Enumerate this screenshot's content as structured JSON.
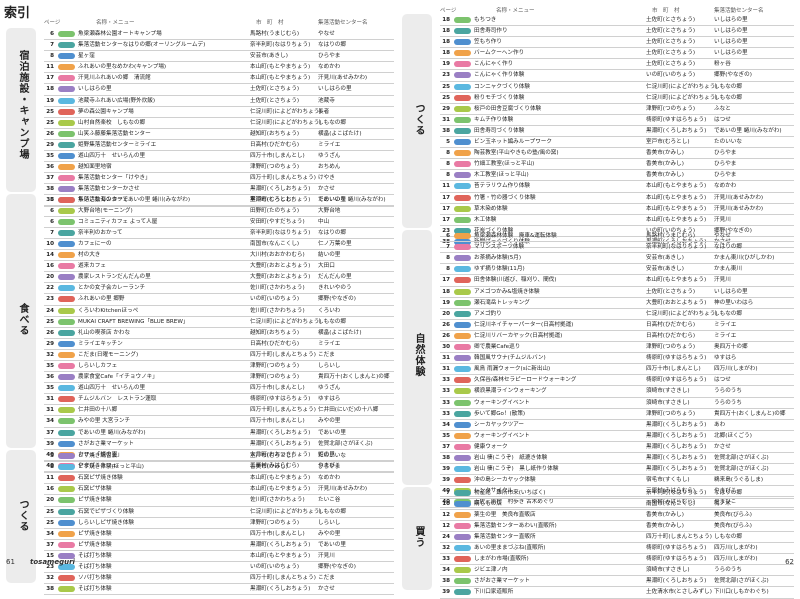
{
  "title": "索引",
  "header": {
    "page": "ページ",
    "name": "名称・メニュー",
    "town": "市　町　村",
    "center": "集落活動センター名"
  },
  "footer": {
    "left_page": "61",
    "right_page": "62",
    "brand": "tosameguri"
  },
  "colors": {
    "green": "#7cc36d",
    "teal": "#4aa5a0",
    "blue": "#4f8fcf",
    "orange": "#f0a24a",
    "pink": "#e97aa4",
    "purple": "#9a7fc4",
    "sky": "#5bb8e0",
    "red": "#e0645a",
    "lime": "#a9c94a"
  },
  "left_sections": [
    {
      "label": "宿泊施設・キャンプ場",
      "rows": [
        {
          "p": "6",
          "b": "green",
          "n": "魚梁瀬森林公園オートキャンプ場",
          "t": "馬路村(うまじむら)",
          "c": "やなせ"
        },
        {
          "p": "7",
          "b": "teal",
          "n": "集落活動センターなはりの郷(オーリングルームデ)",
          "t": "奈半利町(なはりちょう)",
          "c": "なはりの郷"
        },
        {
          "p": "8",
          "b": "blue",
          "n": "星ヶ窪",
          "t": "安芸市(あきし)",
          "c": "ひらやま"
        },
        {
          "p": "11",
          "b": "orange",
          "n": "ふれあいの里なめかわ(キャンプ場)",
          "t": "本山町(もとやまちょう)",
          "c": "なめかわ"
        },
        {
          "p": "17",
          "b": "pink",
          "n": "汗見川ふれあいの郷　清流館",
          "t": "本山町(もとやまちょう)",
          "c": "汗見川(あせみかわ)"
        },
        {
          "p": "18",
          "b": "purple",
          "n": "いしはらの里",
          "t": "土佐町(とさちょう)",
          "c": "いしはらの里"
        },
        {
          "p": "19",
          "b": "sky",
          "n": "池蔵寺ふれあい広場(野外炊飯)",
          "t": "土佐町(とさちょう)",
          "c": "池蔵寺"
        },
        {
          "p": "25",
          "b": "red",
          "n": "夢の森公園キャンプ場",
          "t": "仁淀川町(によどがわちょう)",
          "c": "長者"
        },
        {
          "p": "25",
          "b": "lime",
          "n": "山村自然楽校　しもなの郷",
          "t": "仁淀川町(によどがわちょう)",
          "c": "しもなの郷"
        },
        {
          "p": "26",
          "b": "green",
          "n": "山笑ふ藤藤集落活動センター",
          "t": "越知町(おちちょう)",
          "c": "横畠(よこばたけ)"
        },
        {
          "p": "29",
          "b": "teal",
          "n": "姫野集落活動センターミライエ",
          "t": "日高村(ひだかむら)",
          "c": "ミライエ"
        },
        {
          "p": "35",
          "b": "blue",
          "n": "遊山四万十　せいらんの里",
          "t": "四万十市(しまんとし)",
          "c": "ゆうざん"
        },
        {
          "p": "36",
          "b": "orange",
          "n": "越知面里地宿",
          "t": "津野町(つのちょう)",
          "c": "おちめん"
        },
        {
          "p": "37",
          "b": "pink",
          "n": "集落活動センター「けやき」",
          "t": "四万十町(しまんとちょう)",
          "c": "けやき"
        },
        {
          "p": "38",
          "b": "purple",
          "n": "集落活動センターかさせ",
          "t": "黒潮町(くろしおちょう)",
          "c": "かさせ"
        },
        {
          "p": "38",
          "b": "sky",
          "n": "集落活動センターであいの里 蜷川(みながわ)",
          "t": "黒潮町(くろしおちょう)",
          "c": "であいの里 蜷川(みながわ)"
        }
      ]
    },
    {
      "label": "食べる",
      "rows": [
        {
          "p": "5",
          "b": "red",
          "n": "ちいさな海のカフェ",
          "t": "室戸市(むろとし)",
          "c": "たのいいな"
        },
        {
          "p": "6",
          "b": "lime",
          "n": "大野台地(モーニング)",
          "t": "田野町(たのちょう)",
          "c": "大野台地"
        },
        {
          "p": "6",
          "b": "green",
          "n": "コミュニティカフェ よって人屋",
          "t": "安田町(やすだちょう)",
          "c": "中山"
        },
        {
          "p": "7",
          "b": "teal",
          "n": "奈半利のおかって",
          "t": "奈半利町(なはりちょう)",
          "c": "なはりの郷"
        },
        {
          "p": "10",
          "b": "blue",
          "n": "カフェにーの",
          "t": "南国市(なんこくし)",
          "c": "仁ノ万葉の里"
        },
        {
          "p": "14",
          "b": "orange",
          "n": "村の大き",
          "t": "大川村(おおかわむら)",
          "c": "結いの里"
        },
        {
          "p": "16",
          "b": "pink",
          "n": "遊来カフェ",
          "t": "大豊町(おおとよちょう)",
          "c": "大田口"
        },
        {
          "p": "20",
          "b": "purple",
          "n": "農家レストランだんだんの里",
          "t": "大豊町(おおとよちょう)",
          "c": "だんだんの里"
        },
        {
          "p": "22",
          "b": "sky",
          "n": "とかの女子会カレーランチ",
          "t": "佐川町(さかわちょう)",
          "c": "きれいやのう"
        },
        {
          "p": "23",
          "b": "red",
          "n": "ふれあいの里 郷野",
          "t": "いの町(いのちょう)",
          "c": "郷野(やなぎの)"
        },
        {
          "p": "24",
          "b": "lime",
          "n": "くろいわKitchenほっぺ",
          "t": "佐川町(さかわちょう)",
          "c": "くろいわ"
        },
        {
          "p": "25",
          "b": "green",
          "n": "MUKAI CRAFT BREWING「BLUE BREW」",
          "t": "仁淀川町(によどがわちょう)",
          "c": "しもなの郷"
        },
        {
          "p": "26",
          "b": "teal",
          "n": "礼山の喫茶店 かわな",
          "t": "越知町(おちちょう)",
          "c": "横畠(よこばたけ)"
        },
        {
          "p": "29",
          "b": "blue",
          "n": "ミライエキッチン",
          "t": "日高村(ひだかむら)",
          "c": "ミライエ"
        },
        {
          "p": "32",
          "b": "orange",
          "n": "こだま(日曜モーニング)",
          "t": "四万十町(しまんとちょう)",
          "c": "こだま"
        },
        {
          "p": "35",
          "b": "pink",
          "n": "しらいしカフェ",
          "t": "津野町(つのちょう)",
          "c": "しらいし"
        },
        {
          "p": "36",
          "b": "purple",
          "n": "農家食堂Cafe「イチョウノキ」",
          "t": "津野町(つのちょう)",
          "c": "貴四万十(おくしまんと)の郷"
        },
        {
          "p": "35",
          "b": "sky",
          "n": "遊山四万十　せいらんの里",
          "t": "四万十市(しまんとし)",
          "c": "ゆうざん"
        },
        {
          "p": "31",
          "b": "red",
          "n": "チムジルバン　レストラン蓮取",
          "t": "梼原町(ゆすはらちょう)",
          "c": "ゆすはら"
        },
        {
          "p": "31",
          "b": "lime",
          "n": "仁井田の十八郷",
          "t": "四万十町(しまんとちょう)",
          "c": "仁井田(にいだ)の十八郷"
        },
        {
          "p": "34",
          "b": "green",
          "n": "みやの里 大宮ランチ",
          "t": "四万十市(しまんとし)",
          "c": "みやの里"
        },
        {
          "p": "37",
          "b": "teal",
          "n": "であいの里 蜷川(みながわ)",
          "t": "黒潮町(くろしおちょう)",
          "c": "であいの里"
        },
        {
          "p": "39",
          "b": "blue",
          "n": "さがおさ業マーケット",
          "t": "黒潮町(くろしおちょう)",
          "c": "佐賀北部(さがほくぶ)"
        },
        {
          "p": "40",
          "b": "orange",
          "n": "カフェ「姫の里」",
          "t": "大月町(おおつきちょう)",
          "c": "姫の里"
        },
        {
          "p": "40",
          "b": "pink",
          "n": "やまびこカフェ",
          "t": "三原村(みはらむら)",
          "c": "やまびこ"
        }
      ]
    },
    {
      "label": "つくる",
      "rows": [
        {
          "p": "5",
          "b": "purple",
          "n": "ピザ焼き講習会",
          "t": "室戸市(むろとし)",
          "c": "たのいいな"
        },
        {
          "p": "8",
          "b": "sky",
          "n": "ピザ焼き体験(ほっと平山)",
          "t": "香美市(かみし)",
          "c": "ひらやま"
        },
        {
          "p": "11",
          "b": "red",
          "n": "石窯ピザ焼き体験",
          "t": "本山町(もとやまちょう)",
          "c": "なめかわ"
        },
        {
          "p": "16",
          "b": "lime",
          "n": "石窯ピザ体験",
          "t": "本山町(もとやまちょう)",
          "c": "汗見川(あせみかわ)"
        },
        {
          "p": "20",
          "b": "green",
          "n": "ピザ焼き体験",
          "t": "佐川町(さかわちょう)",
          "c": "たいこ谷"
        },
        {
          "p": "25",
          "b": "teal",
          "n": "石窯でピザづくり体験",
          "t": "仁淀川町(によどがわちょう)",
          "c": "しもなの郷"
        },
        {
          "p": "25",
          "b": "blue",
          "n": "しらいしピザ焼き体験",
          "t": "津野町(つのちょう)",
          "c": "しらいし"
        },
        {
          "p": "34",
          "b": "orange",
          "n": "ピザ焼き体験",
          "t": "四万十市(しまんとし)",
          "c": "みやの里"
        },
        {
          "p": "37",
          "b": "pink",
          "n": "ピザ焼き体験",
          "t": "黒潮町(くろしおちょう)",
          "c": "であいの里"
        },
        {
          "p": "15",
          "b": "purple",
          "n": "そば打ち体験",
          "t": "本山町(もとやまちょう)",
          "c": "汗見川"
        },
        {
          "p": "23",
          "b": "sky",
          "n": "そば打ち体験",
          "t": "いの町(いのちょう)",
          "c": "郷野(やなぎの)"
        },
        {
          "p": "32",
          "b": "red",
          "n": "ソバ打ち体験",
          "t": "四万十町(しまんとちょう)",
          "c": "こだま"
        },
        {
          "p": "38",
          "b": "lime",
          "n": "そば打ち体験",
          "t": "黒潮町(くろしおちょう)",
          "c": "かさせ"
        }
      ]
    }
  ],
  "right_sections": [
    {
      "label": "つくる",
      "rows": [
        {
          "p": "18",
          "b": "green",
          "n": "もちつき",
          "t": "土佐町(とさちょう)",
          "c": "いしはらの里"
        },
        {
          "p": "18",
          "b": "teal",
          "n": "田舎寿司作り",
          "t": "土佐町(とさちょう)",
          "c": "いしはらの里"
        },
        {
          "p": "18",
          "b": "blue",
          "n": "笠もち作り",
          "t": "土佐町(とさちょう)",
          "c": "いしはらの里"
        },
        {
          "p": "18",
          "b": "orange",
          "n": "バームクーヘン作り",
          "t": "土佐町(とさちょう)",
          "c": "いしはらの里"
        },
        {
          "p": "19",
          "b": "pink",
          "n": "こんにゃく作り",
          "t": "土佐町(とさちょう)",
          "c": "粉ヶ谷"
        },
        {
          "p": "23",
          "b": "purple",
          "n": "こんにゃく作り体験",
          "t": "いの町(いのちょう)",
          "c": "郷野(やなぎの)"
        },
        {
          "p": "25",
          "b": "sky",
          "n": "コンニャクづくり体験",
          "t": "仁淀川町(によどがわちょう)",
          "c": "しもなの郷"
        },
        {
          "p": "25",
          "b": "red",
          "n": "粉りモチづくり体験",
          "t": "仁淀川町(によどがわちょう)",
          "c": "しもなの郷"
        },
        {
          "p": "29",
          "b": "lime",
          "n": "桜戸の田舎豆腐づくり体験",
          "t": "津野町(つのちょう)",
          "c": "ふなと"
        },
        {
          "p": "31",
          "b": "green",
          "n": "キムチ作り体験",
          "t": "梼原町(ゆすはらちょう)",
          "c": "はつせ"
        },
        {
          "p": "38",
          "b": "teal",
          "n": "田舎寿司づくり体験",
          "t": "黒潮町(くろしおちょう)",
          "c": "であいの里 蜷川(みながわ)"
        },
        {
          "p": "5",
          "b": "blue",
          "n": "ビン玉ネット編みループワーク",
          "t": "室戸市(むろとし)",
          "c": "たのいいな"
        },
        {
          "p": "8",
          "b": "orange",
          "n": "陶芸教室(平山やきもの塾/風の窯)",
          "t": "香美市(かみし)",
          "c": "ひらやま"
        },
        {
          "p": "8",
          "b": "pink",
          "n": "竹細工教室(ほっと平山)",
          "t": "香美市(かみし)",
          "c": "ひらやま"
        },
        {
          "p": "8",
          "b": "purple",
          "n": "木工教室(ほっと平山)",
          "t": "香美市(かみし)",
          "c": "ひらやま"
        },
        {
          "p": "11",
          "b": "sky",
          "n": "苔テラリウム作り体験",
          "t": "本山町(もとやまちょう)",
          "c": "なめかわ"
        },
        {
          "p": "17",
          "b": "red",
          "n": "竹箸・竹の器づくり体験",
          "t": "本山町(もとやまちょう)",
          "c": "汗見川(あせみかわ)"
        },
        {
          "p": "17",
          "b": "lime",
          "n": "草木染め体験",
          "t": "本山町(もとやまちょう)",
          "c": "汗見川(あせみかわ)"
        },
        {
          "p": "17",
          "b": "green",
          "n": "木工体験",
          "t": "本山町(もとやまちょう)",
          "c": "汗見川"
        },
        {
          "p": "23",
          "b": "teal",
          "n": "花炭づくり体験",
          "t": "いの町(いのちょう)",
          "c": "郷野(やなぎの)"
        },
        {
          "p": "38",
          "b": "blue",
          "n": "新聞ばっぐづくり体験",
          "t": "黒潮町(くろしおちょう)",
          "c": "かさせ"
        }
      ]
    },
    {
      "label": "自然体験",
      "rows": [
        {
          "p": "6",
          "b": "orange",
          "n": "魚梁瀬森林体験　廃車&運転体験",
          "t": "馬路村(うまじむら)",
          "c": "やなせ"
        },
        {
          "p": "7",
          "b": "pink",
          "n": "マリンスポーツ体験",
          "t": "奈半利町(なはりちょう)",
          "c": "なはりの郷"
        },
        {
          "p": "8",
          "b": "purple",
          "n": "お茶摘み体験(5月)",
          "t": "安芸市(あきし)",
          "c": "かまん東川(ひがしかわ)"
        },
        {
          "p": "8",
          "b": "sky",
          "n": "ゆず摘り体験(11月)",
          "t": "安芸市(あきし)",
          "c": "かまん東川"
        },
        {
          "p": "17",
          "b": "red",
          "n": "田舎体験(川遊び、稲刈り、間伐)",
          "t": "本山町(もとやまちょう)",
          "c": "汗見川"
        },
        {
          "p": "18",
          "b": "lime",
          "n": "アメゴつかみ&塩焼き体験",
          "t": "土佐町(とさちょう)",
          "c": "いしはらの里"
        },
        {
          "p": "19",
          "b": "green",
          "n": "瀬石滝岳トレッキング",
          "t": "大豊町(おおとよちょう)",
          "c": "神の里いわはら"
        },
        {
          "p": "20",
          "b": "teal",
          "n": "アメゴ釣り",
          "t": "仁淀川町(によどがわちょう)",
          "c": "しもなの郷"
        },
        {
          "p": "26",
          "b": "blue",
          "n": "仁淀川ネイチャーパーター(日高村拠運)",
          "t": "日高村(ひだかむら)",
          "c": "ミライエ"
        },
        {
          "p": "26",
          "b": "orange",
          "n": "仁淀川リバーカヤック(日高村拠運)",
          "t": "日高村(ひだかむら)",
          "c": "ミライエ"
        },
        {
          "p": "30",
          "b": "pink",
          "n": "卿で農業Cafe巡り",
          "t": "津野町(つのちょう)",
          "c": "奥四万十の郷"
        },
        {
          "p": "31",
          "b": "purple",
          "n": "韓国風サウナ(チムジルバン)",
          "t": "梼原町(ゆすはらちょう)",
          "c": "ゆすはら"
        },
        {
          "p": "31",
          "b": "sky",
          "n": "風鳥 雨漏ウォーク(sに新出山)",
          "t": "四万十市(しまんとし)",
          "c": "四万川(しまがわ)"
        },
        {
          "p": "33",
          "b": "red",
          "n": "久保谷/森林セラピーロードウォーキング",
          "t": "梼原町(ゆすはらちょう)",
          "c": "はつせ"
        },
        {
          "p": "33",
          "b": "lime",
          "n": "横浪黒潮ラインウォーキング",
          "t": "須崎市(すさきし)",
          "c": "うらのうち"
        },
        {
          "p": "33",
          "b": "green",
          "n": "ウォーキングイベント",
          "t": "須崎市(すさきし)",
          "c": "うらのうち"
        },
        {
          "p": "33",
          "b": "teal",
          "n": "歩いて郷Go！(散策)",
          "t": "津野町(つのちょう)",
          "c": "貴四万十(おくしまんと)の郷"
        },
        {
          "p": "34",
          "b": "blue",
          "n": "シーカヤックツアー",
          "t": "黒潮町(くろしおちょう)",
          "c": "あわ"
        },
        {
          "p": "35",
          "b": "orange",
          "n": "ウォーキングイベント",
          "t": "黒潮町(くろしおちょう)",
          "c": "北郷(ほくごう)"
        },
        {
          "p": "37",
          "b": "pink",
          "n": "健康ウォーク",
          "t": "黒潮町(くろしおちょう)",
          "c": "かさせ"
        },
        {
          "p": "38",
          "b": "purple",
          "n": "岩山 棲(こうぞ)　紙漉き体験",
          "t": "黒潮町(くろしおちょう)",
          "c": "佐賀北部(さがほくぶ)"
        },
        {
          "p": "39",
          "b": "sky",
          "n": "岩山 棲(こうぞ)　黒し紙作り体験",
          "t": "黒潮町(くろしおちょう)",
          "c": "佐賀北部(さがほくぶ)"
        },
        {
          "p": "39",
          "b": "red",
          "n": "沖の島シーカヤック体験",
          "t": "宿毛市(すくもし)",
          "c": "鵜来島(うぐるしま)"
        },
        {
          "p": "40",
          "b": "lime",
          "n": "レンタサイクル",
          "t": "三原村(みはらむら)",
          "c": "やまびこ"
        },
        {
          "p": "40",
          "b": "green",
          "n": "土佐三原村　村歩き 古木めぐり",
          "t": "三原村(みはらむら)",
          "c": "やまびこ"
        }
      ]
    },
    {
      "label": "買う",
      "rows": [
        {
          "p": "7",
          "b": "teal",
          "n": "物産館　難所市来(いちばく)",
          "t": "奈半利町(なはりちょう)",
          "c": "なはりの郷"
        },
        {
          "p": "10",
          "b": "blue",
          "n": "購ももの店",
          "t": "南国市(なんこくし)",
          "c": "梅ノ木"
        },
        {
          "p": "12",
          "b": "orange",
          "n": "薬生の里　美良布直販店",
          "t": "香美市(かみし)",
          "c": "美良布(びらふ)"
        },
        {
          "p": "12",
          "b": "pink",
          "n": "集落活動センターあわい(直販所)",
          "t": "香美市(かみし)",
          "c": "美良布(びらふ)"
        },
        {
          "p": "24",
          "b": "purple",
          "n": "集落活動センター直販所",
          "t": "四万十町(しまんとちょう)",
          "c": "しもなの郷"
        },
        {
          "p": "32",
          "b": "sky",
          "n": "あいの里ままづぶね(直販所)",
          "t": "梼原町(ゆすはらちょう)",
          "c": "四万川(しまがわ)"
        },
        {
          "p": "33",
          "b": "red",
          "n": "しまがわ市場(直販所)",
          "t": "梼原町(ゆすはらちょう)",
          "c": "四万川(しまがわ)"
        },
        {
          "p": "34",
          "b": "lime",
          "n": "ジビエ津ノ内",
          "t": "須崎市(すさきし)",
          "c": "うらのうち"
        },
        {
          "p": "38",
          "b": "green",
          "n": "さがおさ業マーケット",
          "t": "黒潮町(くろしおちょう)",
          "c": "佐賀北部(さがほくぶ)"
        },
        {
          "p": "39",
          "b": "teal",
          "n": "下川口家道販所",
          "t": "土佐清水市(とさしみずし)",
          "c": "下川口(しもかわぐち)"
        }
      ]
    }
  ]
}
